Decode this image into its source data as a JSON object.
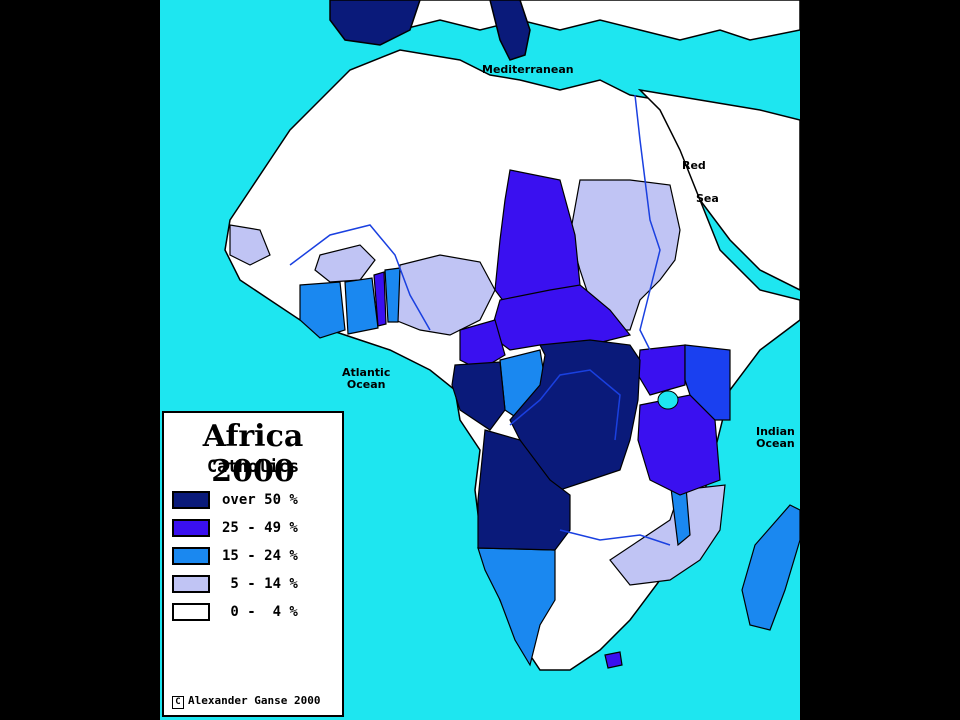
{
  "legend": {
    "title": "Africa 2000",
    "subtitle": "Catholics",
    "items": [
      {
        "label": "over 50 %",
        "color": "#0a1a7a"
      },
      {
        "label": "25 - 49 %",
        "color": "#3a10f0"
      },
      {
        "label": "15 - 24 %",
        "color": "#1a88f0"
      },
      {
        "label": " 5 - 14 %",
        "color": "#c0c4f4"
      },
      {
        "label": " 0 -  4 %",
        "color": "#ffffff"
      }
    ]
  },
  "credit": {
    "symbol": "C",
    "text": "Alexander Ganse 2000"
  },
  "labels": {
    "mediterranean": "Mediterranean",
    "red": "Red",
    "sea": "Sea",
    "atlantic": "Atlantic",
    "ocean_atl": "Ocean",
    "indian": "Indian",
    "ocean_ind": "Ocean"
  },
  "colors": {
    "water": "#1ee6f0",
    "land": "#ffffff",
    "border": "#000000",
    "river": "#1a40e0"
  }
}
